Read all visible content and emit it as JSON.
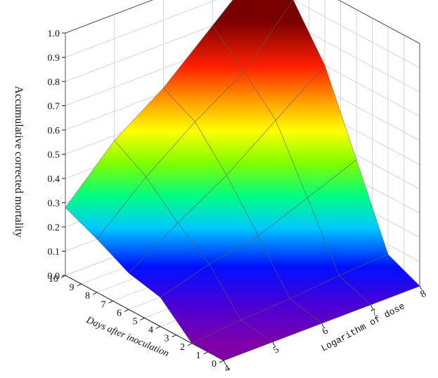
{
  "chart_data": {
    "type": "surface3d",
    "zlabel": "Accumulative corrected mortality",
    "ylabel": "Days after inoculation",
    "xlabel": "Logarithm of dose",
    "z_ticks": [
      "0.0",
      "0.1",
      "0.2",
      "0.3",
      "0.4",
      "0.5",
      "0.6",
      "0.7",
      "0.8",
      "0.9",
      "1.0"
    ],
    "day_ticks": [
      "0",
      "1",
      "2",
      "3",
      "4",
      "5",
      "6",
      "7",
      "8",
      "9",
      "10"
    ],
    "dose_ticks": [
      "4",
      "5",
      "6",
      "7",
      "8"
    ],
    "zlim": [
      0,
      1
    ],
    "dose_range": [
      4,
      8
    ],
    "day_range": [
      0,
      10
    ],
    "grid": true,
    "colormap": "rainbow",
    "surface": {
      "doses": [
        4,
        5,
        6,
        7,
        8
      ],
      "days": [
        0,
        2,
        4,
        6,
        8,
        10
      ],
      "z": [
        [
          0.0,
          0.0,
          0.0,
          0.0,
          0.0
        ],
        [
          0.0,
          0.02,
          0.03,
          0.05,
          0.06
        ],
        [
          0.12,
          0.18,
          0.22,
          0.3,
          0.38
        ],
        [
          0.15,
          0.28,
          0.4,
          0.55,
          0.7
        ],
        [
          0.22,
          0.4,
          0.55,
          0.68,
          0.9
        ],
        [
          0.28,
          0.48,
          0.62,
          0.8,
          0.98
        ]
      ]
    }
  }
}
